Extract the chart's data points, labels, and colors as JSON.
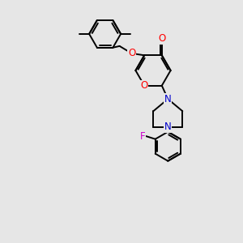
{
  "bg_color": "#e6e6e6",
  "bond_color": "#000000",
  "bond_width": 1.4,
  "atom_colors": {
    "O": "#ff0000",
    "N": "#0000cc",
    "F": "#cc00cc",
    "C": "#000000"
  },
  "font_size": 8.5,
  "fig_width": 3.0,
  "fig_height": 3.0,
  "dpi": 100,
  "xlim": [
    0,
    10
  ],
  "ylim": [
    0,
    10
  ]
}
